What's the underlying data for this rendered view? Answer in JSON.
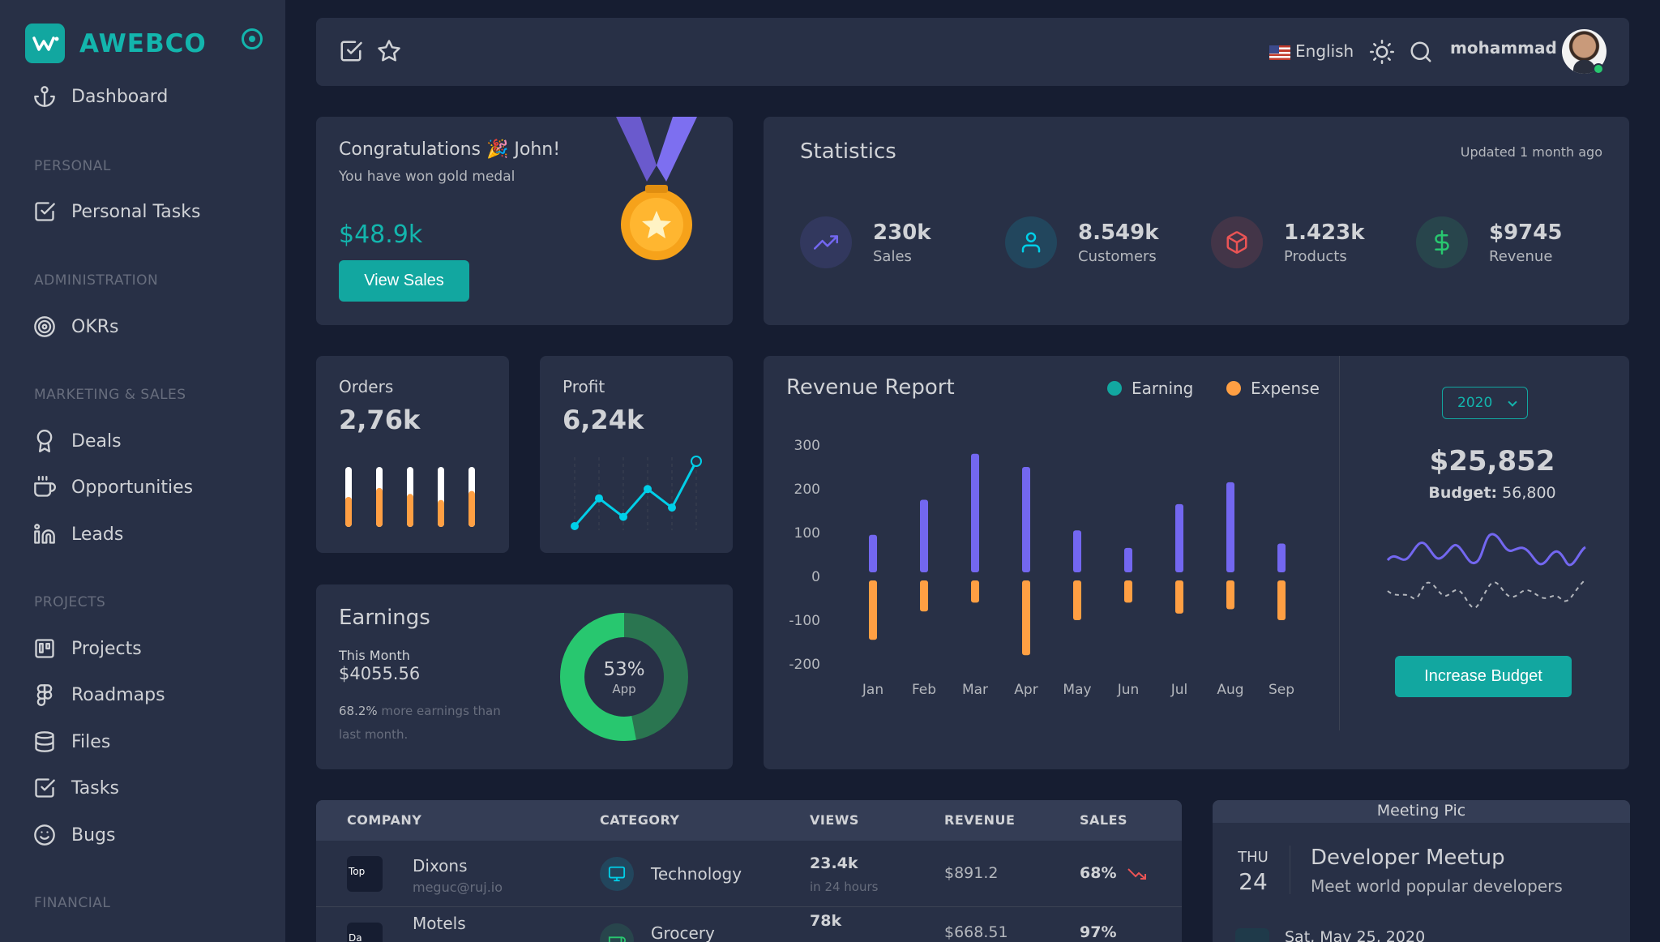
{
  "brand": {
    "name": "AWEBCO"
  },
  "sidebar": {
    "dashboard": "Dashboard",
    "sections": {
      "personal": "PERSONAL",
      "administration": "ADMINISTRATION",
      "marketing": "MARKETING & SALES",
      "projects": "PROJECTS",
      "financial": "FINANCIAL"
    },
    "items": {
      "personal_tasks": "Personal Tasks",
      "okrs": "OKRs",
      "deals": "Deals",
      "opportunities": "Opportunities",
      "leads": "Leads",
      "projects": "Projects",
      "roadmaps": "Roadmaps",
      "files": "Files",
      "tasks": "Tasks",
      "bugs": "Bugs"
    }
  },
  "navbar": {
    "language": "English",
    "username": "mohammad"
  },
  "congrats": {
    "title": "Congratulations 🎉 John!",
    "subtitle": "You have won gold medal",
    "amount": "$48.9k",
    "button": "View Sales"
  },
  "statistics": {
    "title": "Statistics",
    "updated": "Updated 1 month ago",
    "items": [
      {
        "value": "230k",
        "label": "Sales",
        "icon": "trending-up-icon",
        "color": "#7367f0"
      },
      {
        "value": "8.549k",
        "label": "Customers",
        "icon": "user-icon",
        "color": "#00cfe8"
      },
      {
        "value": "1.423k",
        "label": "Products",
        "icon": "box-icon",
        "color": "#ea5455"
      },
      {
        "value": "$9745",
        "label": "Revenue",
        "icon": "dollar-icon",
        "color": "#28c76f"
      }
    ]
  },
  "orders": {
    "label": "Orders",
    "value": "2,76k",
    "fill_fractions": [
      0.5,
      0.65,
      0.55,
      0.45,
      0.6
    ]
  },
  "profit": {
    "label": "Profit",
    "value": "6,24k",
    "points": [
      1,
      4,
      2,
      5,
      3,
      8
    ]
  },
  "earnings": {
    "title": "Earnings",
    "month_label": "This Month",
    "amount": "$4055.56",
    "note_highlight": "68.2%",
    "note_rest": " more earnings than last month.",
    "donut_percent": "53%",
    "donut_label": "App",
    "donut_fraction": 0.53
  },
  "revenue_report": {
    "title": "Revenue Report",
    "legend": {
      "earning": "Earning",
      "expense": "Expense"
    },
    "year": "2020",
    "total": "$25,852",
    "budget_label": "Budget:",
    "budget_value": " 56,800",
    "button": "Increase Budget"
  },
  "chart_data": {
    "type": "bar",
    "title": "Revenue Report",
    "categories": [
      "Jan",
      "Feb",
      "Mar",
      "Apr",
      "May",
      "Jun",
      "Jul",
      "Aug",
      "Sep"
    ],
    "series": [
      {
        "name": "Earning",
        "values": [
          95,
          175,
          280,
          250,
          105,
          65,
          165,
          215,
          75
        ],
        "color": "#7367f0"
      },
      {
        "name": "Expense",
        "values": [
          -145,
          -80,
          -60,
          -180,
          -100,
          -60,
          -85,
          -75,
          -100
        ],
        "color": "#ff9f43"
      }
    ],
    "yticks": [
      300,
      200,
      100,
      0,
      -100,
      -200
    ],
    "ylim": [
      -200,
      300
    ]
  },
  "table": {
    "headers": [
      "COMPANY",
      "CATEGORY",
      "VIEWS",
      "REVENUE",
      "SALES"
    ],
    "rows": [
      {
        "logo": "Top",
        "company": "Dixons",
        "email": "meguc@ruj.io",
        "category": "Technology",
        "views": "23.4k",
        "views_sub": "in 24 hours",
        "revenue": "$891.2",
        "sales": "68%"
      },
      {
        "logo": "Da",
        "company": "Motels",
        "email": "",
        "category": "Grocery",
        "views": "78k",
        "views_sub": "",
        "revenue": "$668.51",
        "sales": "97%"
      }
    ]
  },
  "meetup": {
    "banner_alt": "Meeting Pic",
    "day": "THU",
    "date": "24",
    "title": "Developer Meetup",
    "subtitle": "Meet world popular developers",
    "when": "Sat, May 25, 2020"
  }
}
